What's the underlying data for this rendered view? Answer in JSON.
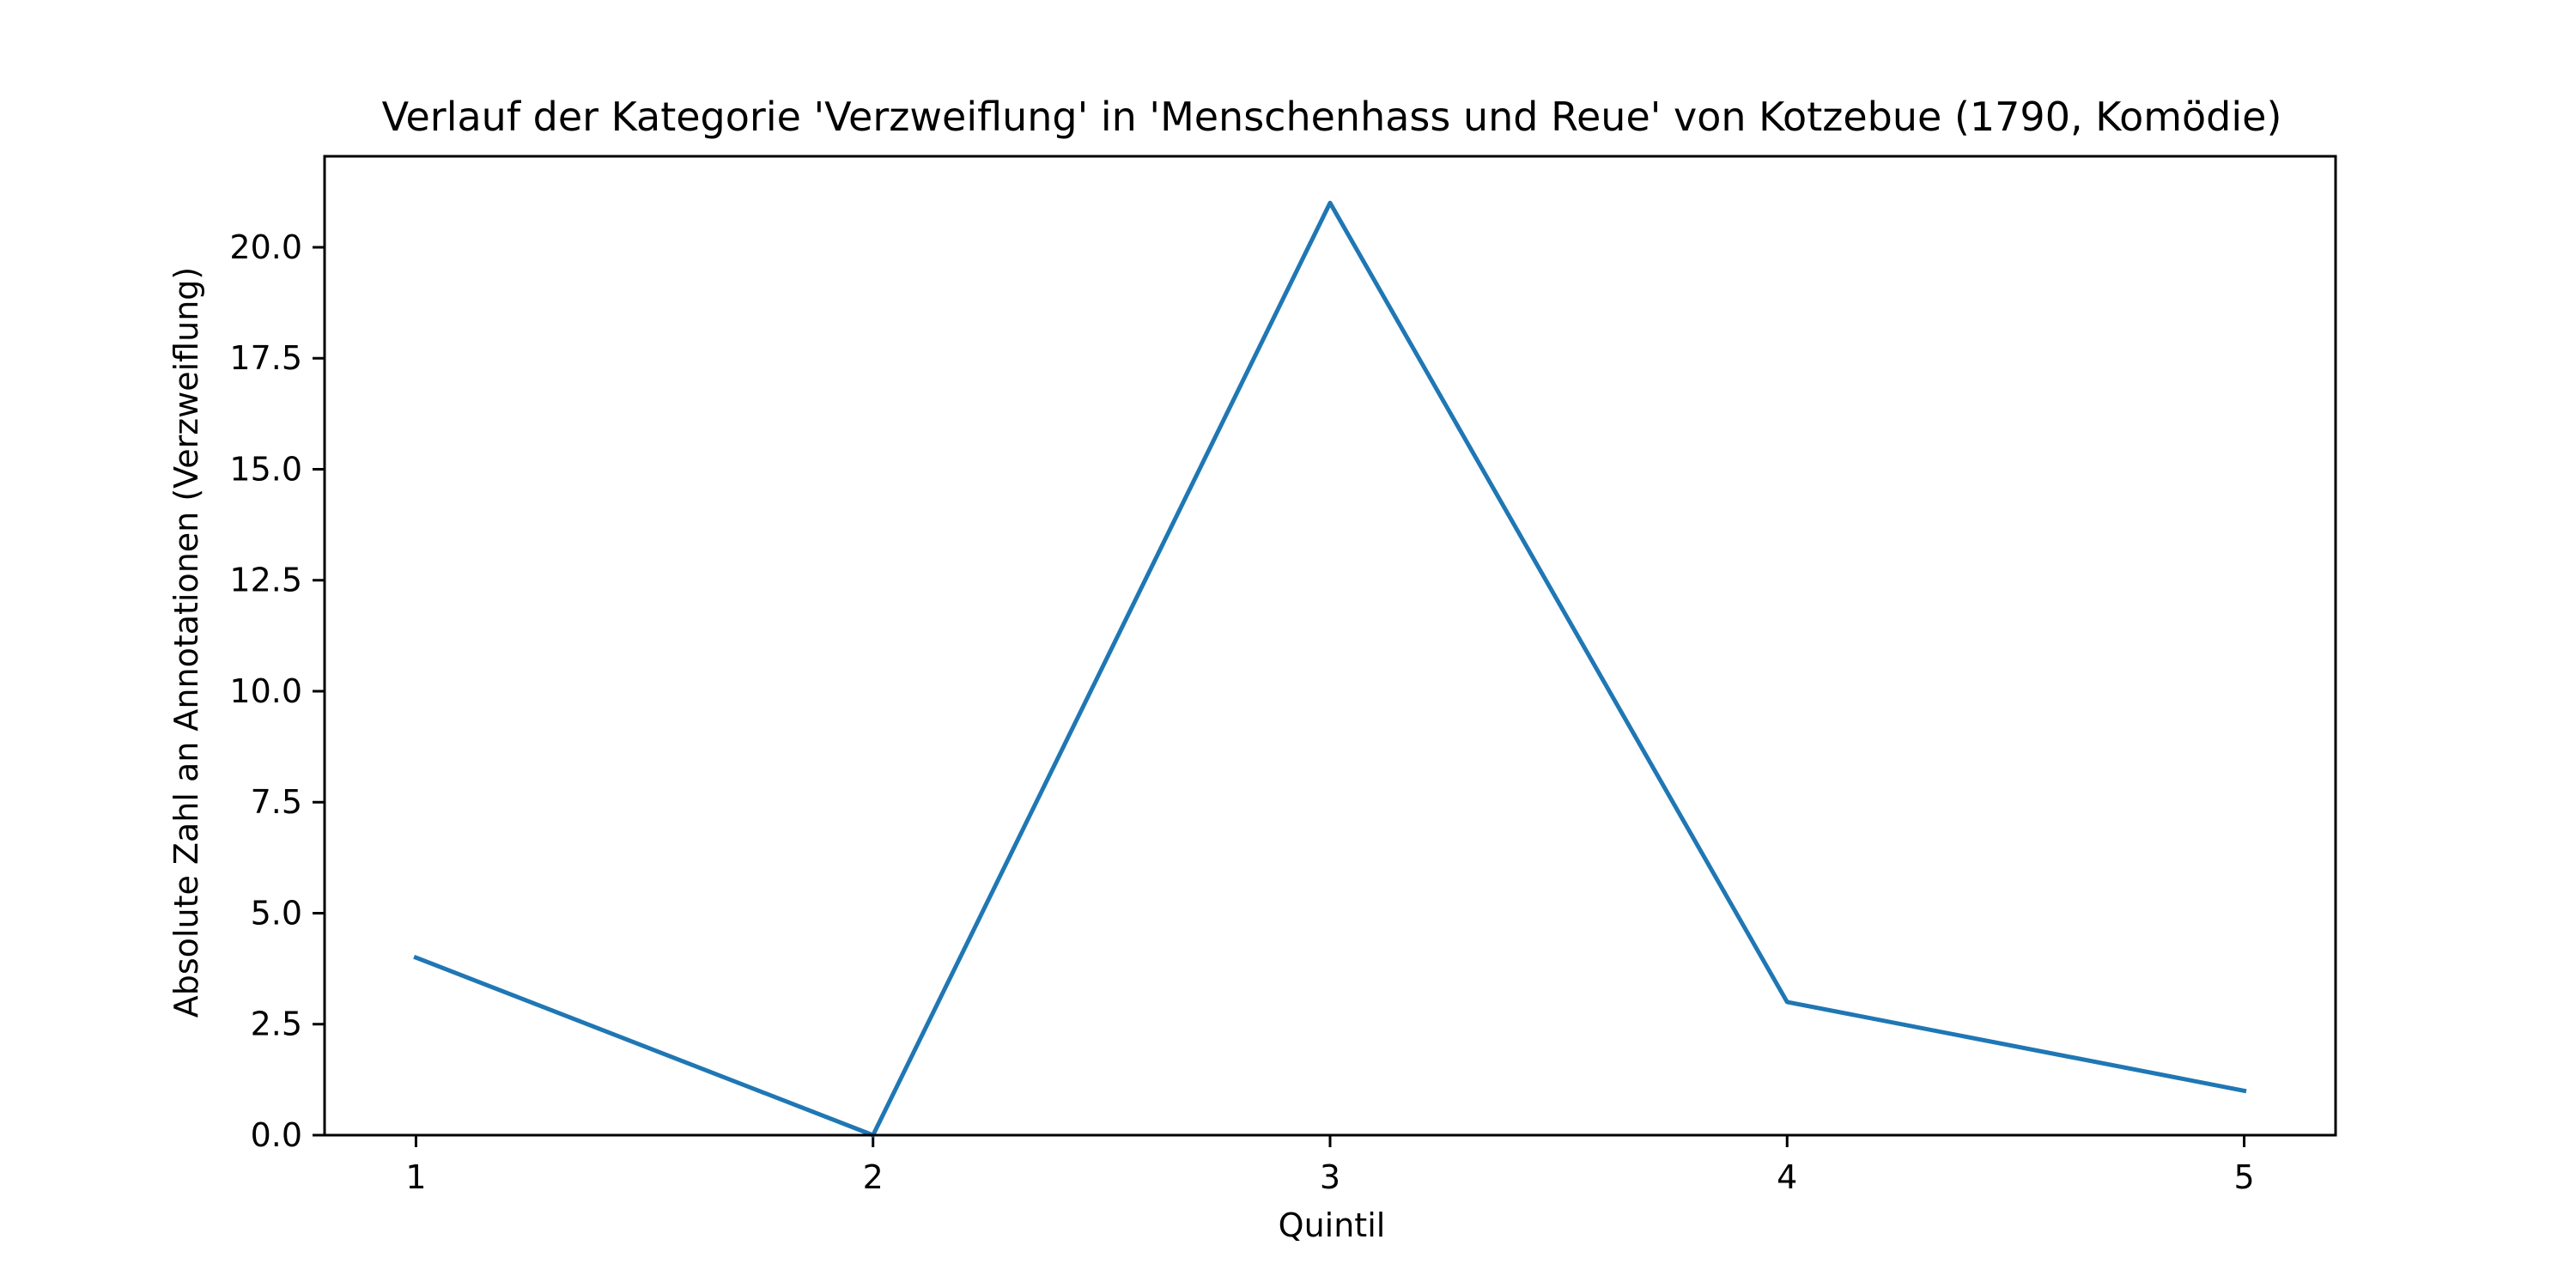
{
  "chart_data": {
    "type": "line",
    "title": "Verlauf der Kategorie 'Verzweiflung' in 'Menschenhass und Reue' von Kotzebue (1790, Komödie)",
    "xlabel": "Quintil",
    "ylabel": "Absolute Zahl an Annotationen (Verzweiflung)",
    "x": [
      1,
      2,
      3,
      4,
      5
    ],
    "x_tick_labels": [
      "1",
      "2",
      "3",
      "4",
      "5"
    ],
    "xlim": [
      0.8,
      5.2
    ],
    "ylim": [
      0,
      22.05
    ],
    "y_ticks": [
      0.0,
      2.5,
      5.0,
      7.5,
      10.0,
      12.5,
      15.0,
      17.5,
      20.0
    ],
    "y_tick_labels": [
      "0.0",
      "2.5",
      "5.0",
      "7.5",
      "10.0",
      "12.5",
      "15.0",
      "17.5",
      "20.0"
    ],
    "series": [
      {
        "values": [
          4,
          0,
          21,
          3,
          1
        ],
        "color": "#1f77b4"
      }
    ],
    "grid": false,
    "legend": "none"
  }
}
